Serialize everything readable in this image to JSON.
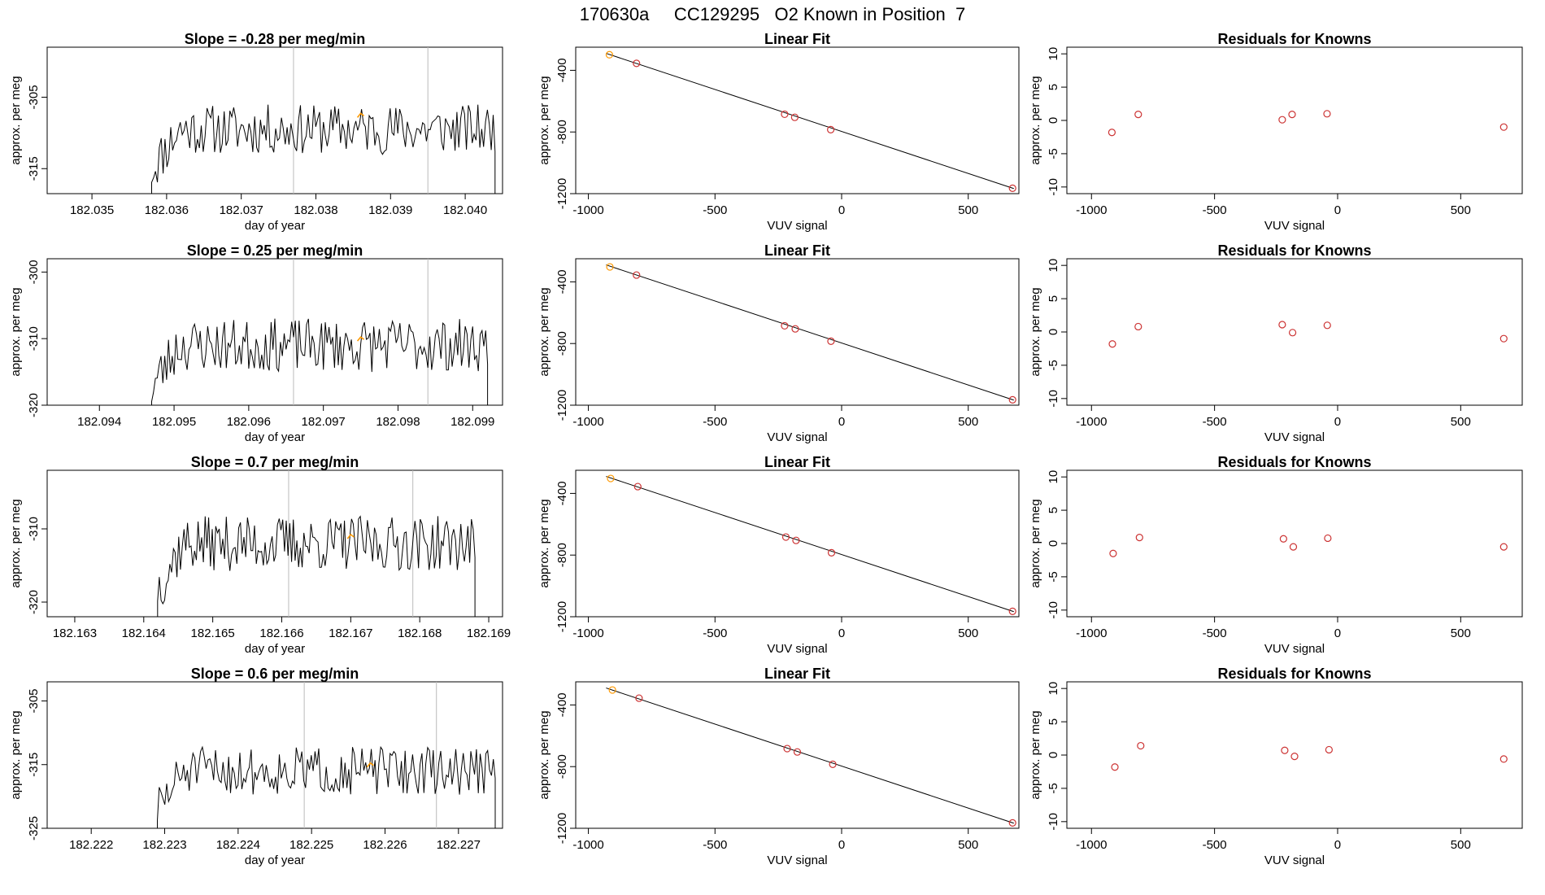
{
  "page_title": "170630a     CC129295   O2 Known in Position  7",
  "colors": {
    "trace": "#000000",
    "marker": "#ff9900",
    "point": "#cc3333",
    "frame": "#000000",
    "vline": "#bbbbbb"
  },
  "chart_data": [
    {
      "type": "line",
      "panel": "time-series-row-1",
      "title": "Slope =  -0.28  per meg/min",
      "xlabel": "day of year",
      "ylabel": "approx. per meg",
      "xlim": [
        182.0344,
        182.0405
      ],
      "ylim": [
        -318.5,
        -298
      ],
      "xticks": [
        "182.035",
        "182.036",
        "182.037",
        "182.038",
        "182.039",
        "182.040"
      ],
      "yticks": [
        "-305",
        "-315"
      ],
      "vlines": [
        182.0377,
        182.0395
      ],
      "trace_start": 182.0358,
      "trace_end": 182.0404,
      "trace_seed": 11,
      "trace_base": -309.5,
      "trace_amp": 2.8,
      "marker": {
        "x": 182.0386,
        "y": -307.5
      }
    },
    {
      "type": "scatter",
      "panel": "linear-fit-row-1",
      "title": "Linear Fit",
      "xlabel": "VUV signal",
      "ylabel": "approx. per meg",
      "xlim": [
        -1050,
        700
      ],
      "ylim": [
        -1200,
        -250
      ],
      "xticks": [
        "-1000",
        "-500",
        "0",
        "500"
      ],
      "yticks": [
        "-400",
        "-800",
        "-1200"
      ],
      "points": [
        [
          -917,
          -299
        ],
        [
          -810,
          -355
        ],
        [
          -225,
          -685
        ],
        [
          -185,
          -705
        ],
        [
          -43,
          -785
        ],
        [
          675,
          -1165
        ]
      ],
      "highlight_index": 0,
      "fit": {
        "x": [
          -930,
          680
        ],
        "y": [
          -290,
          -1167
        ]
      }
    },
    {
      "type": "scatter",
      "panel": "residuals-row-1",
      "title": "Residuals for Knowns",
      "xlabel": "VUV signal",
      "ylabel": "approx. per meg",
      "xlim": [
        -1100,
        750
      ],
      "ylim": [
        -11,
        11
      ],
      "xticks": [
        "-1000",
        "-500",
        "0",
        "500"
      ],
      "yticks": [
        "10",
        "5",
        "0",
        "-5",
        "-10"
      ],
      "points": [
        [
          -917,
          -1.8
        ],
        [
          -810,
          0.9
        ],
        [
          -225,
          0.1
        ],
        [
          -185,
          0.9
        ],
        [
          -43,
          1.0
        ],
        [
          675,
          -1.0
        ]
      ]
    },
    {
      "type": "line",
      "panel": "time-series-row-2",
      "title": "Slope =  0.25  per meg/min",
      "xlabel": "day of year",
      "ylabel": "approx. per meg",
      "xlim": [
        182.0933,
        182.0994
      ],
      "ylim": [
        -320,
        -298
      ],
      "xticks": [
        "182.094",
        "182.095",
        "182.096",
        "182.097",
        "182.098",
        "182.099"
      ],
      "yticks": [
        "-300",
        "-310",
        "-320"
      ],
      "vlines": [
        182.0966,
        182.0984
      ],
      "trace_start": 182.0947,
      "trace_end": 182.0992,
      "trace_seed": 23,
      "trace_base": -311,
      "trace_amp": 3.2,
      "marker": {
        "x": 182.0975,
        "y": -310
      }
    },
    {
      "type": "scatter",
      "panel": "linear-fit-row-2",
      "title": "Linear Fit",
      "xlabel": "VUV signal",
      "ylabel": "approx. per meg",
      "xlim": [
        -1050,
        700
      ],
      "ylim": [
        -1200,
        -250
      ],
      "xticks": [
        "-1000",
        "-500",
        "0",
        "500"
      ],
      "yticks": [
        "-400",
        "-800",
        "-1200"
      ],
      "points": [
        [
          -915,
          -303
        ],
        [
          -810,
          -356
        ],
        [
          -225,
          -685
        ],
        [
          -183,
          -705
        ],
        [
          -42,
          -785
        ],
        [
          675,
          -1165
        ]
      ],
      "highlight_index": 0,
      "fit": {
        "x": [
          -930,
          680
        ],
        "y": [
          -290,
          -1167
        ]
      }
    },
    {
      "type": "scatter",
      "panel": "residuals-row-2",
      "title": "Residuals for Knowns",
      "xlabel": "VUV signal",
      "ylabel": "approx. per meg",
      "xlim": [
        -1100,
        750
      ],
      "ylim": [
        -11,
        11
      ],
      "xticks": [
        "-1000",
        "-500",
        "0",
        "500"
      ],
      "yticks": [
        "10",
        "5",
        "0",
        "-5",
        "-10"
      ],
      "points": [
        [
          -915,
          -1.8
        ],
        [
          -810,
          0.8
        ],
        [
          -225,
          1.1
        ],
        [
          -183,
          -0.1
        ],
        [
          -42,
          1.0
        ],
        [
          675,
          -1.0
        ]
      ]
    },
    {
      "type": "line",
      "panel": "time-series-row-3",
      "title": "Slope =  0.7  per meg/min",
      "xlabel": "day of year",
      "ylabel": "approx. per meg",
      "xlim": [
        182.1626,
        182.1692
      ],
      "ylim": [
        -322,
        -302
      ],
      "xticks": [
        "182.163",
        "182.164",
        "182.165",
        "182.166",
        "182.167",
        "182.168",
        "182.169"
      ],
      "yticks": [
        "-310",
        "-320"
      ],
      "vlines": [
        182.1661,
        182.1679
      ],
      "trace_start": 182.1642,
      "trace_end": 182.1688,
      "trace_seed": 37,
      "trace_base": -312,
      "trace_amp": 3.0,
      "marker": {
        "x": 182.167,
        "y": -311
      }
    },
    {
      "type": "scatter",
      "panel": "linear-fit-row-3",
      "title": "Linear Fit",
      "xlabel": "VUV signal",
      "ylabel": "approx. per meg",
      "xlim": [
        -1050,
        700
      ],
      "ylim": [
        -1200,
        -250
      ],
      "xticks": [
        "-1000",
        "-500",
        "0",
        "500"
      ],
      "yticks": [
        "-400",
        "-800",
        "-1200"
      ],
      "points": [
        [
          -912,
          -303
        ],
        [
          -805,
          -356
        ],
        [
          -220,
          -683
        ],
        [
          -180,
          -705
        ],
        [
          -40,
          -785
        ],
        [
          675,
          -1165
        ]
      ],
      "highlight_index": 0,
      "fit": {
        "x": [
          -930,
          680
        ],
        "y": [
          -290,
          -1167
        ]
      }
    },
    {
      "type": "scatter",
      "panel": "residuals-row-3",
      "title": "Residuals for Knowns",
      "xlabel": "VUV signal",
      "ylabel": "approx. per meg",
      "xlim": [
        -1100,
        750
      ],
      "ylim": [
        -11,
        11
      ],
      "xticks": [
        "-1000",
        "-500",
        "0",
        "500"
      ],
      "yticks": [
        "10",
        "5",
        "0",
        "-5",
        "-10"
      ],
      "points": [
        [
          -912,
          -1.5
        ],
        [
          -805,
          0.9
        ],
        [
          -220,
          0.7
        ],
        [
          -180,
          -0.5
        ],
        [
          -40,
          0.8
        ],
        [
          675,
          -0.5
        ]
      ]
    },
    {
      "type": "line",
      "panel": "time-series-row-4",
      "title": "Slope =  0.6  per meg/min",
      "xlabel": "day of year",
      "ylabel": "approx. per meg",
      "xlim": [
        182.2214,
        182.2276
      ],
      "ylim": [
        -325,
        -302
      ],
      "xticks": [
        "182.222",
        "182.223",
        "182.224",
        "182.225",
        "182.226",
        "182.227"
      ],
      "yticks": [
        "-305",
        "-315",
        "-325"
      ],
      "vlines": [
        182.2249,
        182.2267
      ],
      "trace_start": 182.2229,
      "trace_end": 182.2275,
      "trace_seed": 51,
      "trace_base": -316,
      "trace_amp": 3.0,
      "marker": {
        "x": 182.2258,
        "y": -315
      }
    },
    {
      "type": "scatter",
      "panel": "linear-fit-row-4",
      "title": "Linear Fit",
      "xlabel": "VUV signal",
      "ylabel": "approx. per meg",
      "xlim": [
        -1050,
        700
      ],
      "ylim": [
        -1200,
        -250
      ],
      "xticks": [
        "-1000",
        "-500",
        "0",
        "500"
      ],
      "yticks": [
        "-400",
        "-800",
        "-1200"
      ],
      "points": [
        [
          -905,
          -303
        ],
        [
          -800,
          -356
        ],
        [
          -215,
          -683
        ],
        [
          -175,
          -705
        ],
        [
          -35,
          -785
        ],
        [
          675,
          -1165
        ]
      ],
      "highlight_index": 0,
      "fit": {
        "x": [
          -930,
          680
        ],
        "y": [
          -290,
          -1167
        ]
      }
    },
    {
      "type": "scatter",
      "panel": "residuals-row-4",
      "title": "Residuals for Knowns",
      "xlabel": "VUV signal",
      "ylabel": "approx. per meg",
      "xlim": [
        -1100,
        750
      ],
      "ylim": [
        -11,
        11
      ],
      "xticks": [
        "-1000",
        "-500",
        "0",
        "500"
      ],
      "yticks": [
        "10",
        "5",
        "0",
        "-5",
        "-10"
      ],
      "points": [
        [
          -905,
          -1.8
        ],
        [
          -800,
          1.4
        ],
        [
          -215,
          0.7
        ],
        [
          -175,
          -0.2
        ],
        [
          -35,
          0.8
        ],
        [
          675,
          -0.6
        ]
      ]
    }
  ]
}
